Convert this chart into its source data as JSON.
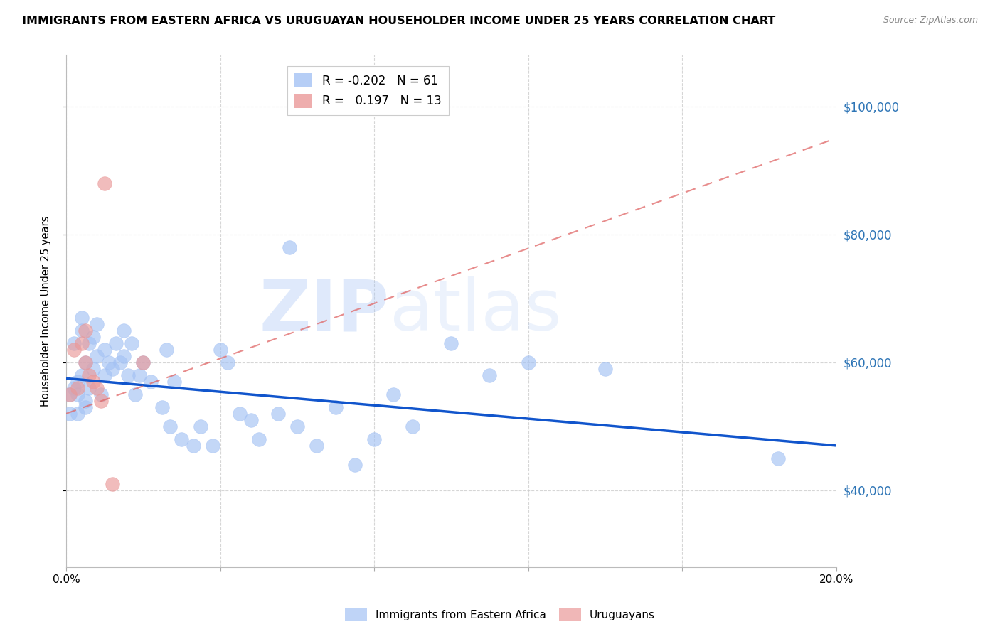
{
  "title": "IMMIGRANTS FROM EASTERN AFRICA VS URUGUAYAN HOUSEHOLDER INCOME UNDER 25 YEARS CORRELATION CHART",
  "source": "Source: ZipAtlas.com",
  "ylabel": "Householder Income Under 25 years",
  "watermark_zip": "ZIP",
  "watermark_atlas": "atlas",
  "xlim": [
    0.0,
    0.2
  ],
  "ylim": [
    28000,
    108000
  ],
  "yticks": [
    40000,
    60000,
    80000,
    100000
  ],
  "ytick_labels": [
    "$40,000",
    "$60,000",
    "$80,000",
    "$100,000"
  ],
  "xticks": [
    0.0,
    0.04,
    0.08,
    0.12,
    0.16,
    0.2
  ],
  "xtick_labels": [
    "0.0%",
    "",
    "",
    "",
    "",
    "20.0%"
  ],
  "blue_R": -0.202,
  "blue_N": 61,
  "pink_R": 0.197,
  "pink_N": 13,
  "blue_color": "#a4c2f4",
  "pink_color": "#ea9999",
  "trend_blue_color": "#1155cc",
  "trend_pink_color": "#e06666",
  "background_color": "#ffffff",
  "grid_color": "#cccccc",
  "blue_scatter_x": [
    0.001,
    0.001,
    0.002,
    0.002,
    0.003,
    0.003,
    0.003,
    0.004,
    0.004,
    0.004,
    0.005,
    0.005,
    0.005,
    0.006,
    0.006,
    0.007,
    0.007,
    0.008,
    0.008,
    0.009,
    0.01,
    0.01,
    0.011,
    0.012,
    0.013,
    0.014,
    0.015,
    0.015,
    0.016,
    0.017,
    0.018,
    0.019,
    0.02,
    0.022,
    0.025,
    0.026,
    0.027,
    0.028,
    0.03,
    0.033,
    0.035,
    0.038,
    0.04,
    0.042,
    0.045,
    0.048,
    0.05,
    0.055,
    0.058,
    0.06,
    0.065,
    0.07,
    0.075,
    0.08,
    0.085,
    0.09,
    0.1,
    0.11,
    0.12,
    0.14,
    0.185
  ],
  "blue_scatter_y": [
    52000,
    55000,
    63000,
    56000,
    57000,
    52000,
    55000,
    65000,
    67000,
    58000,
    54000,
    60000,
    53000,
    63000,
    56000,
    64000,
    59000,
    66000,
    61000,
    55000,
    62000,
    58000,
    60000,
    59000,
    63000,
    60000,
    65000,
    61000,
    58000,
    63000,
    55000,
    58000,
    60000,
    57000,
    53000,
    62000,
    50000,
    57000,
    48000,
    47000,
    50000,
    47000,
    62000,
    60000,
    52000,
    51000,
    48000,
    52000,
    78000,
    50000,
    47000,
    53000,
    44000,
    48000,
    55000,
    50000,
    63000,
    58000,
    60000,
    59000,
    45000
  ],
  "pink_scatter_x": [
    0.001,
    0.002,
    0.003,
    0.004,
    0.005,
    0.005,
    0.006,
    0.007,
    0.008,
    0.009,
    0.01,
    0.012,
    0.02
  ],
  "pink_scatter_y": [
    55000,
    62000,
    56000,
    63000,
    60000,
    65000,
    58000,
    57000,
    56000,
    54000,
    88000,
    41000,
    60000
  ],
  "blue_trend_x": [
    0.0,
    0.2
  ],
  "blue_trend_y": [
    57500,
    47000
  ],
  "pink_trend_x": [
    0.0,
    0.2
  ],
  "pink_trend_y": [
    52000,
    95000
  ]
}
